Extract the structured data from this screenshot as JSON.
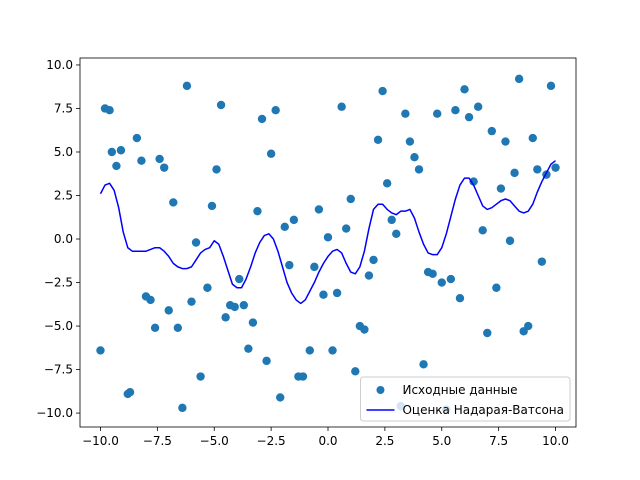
{
  "chart_data": {
    "type": "scatter",
    "title": "",
    "xlabel": "",
    "ylabel": "",
    "xlim": [
      -10.9,
      10.9
    ],
    "ylim": [
      -10.8,
      10.4
    ],
    "xticks": [
      -10.0,
      -7.5,
      -5.0,
      -2.5,
      0.0,
      2.5,
      5.0,
      7.5,
      10.0
    ],
    "yticks": [
      -10.0,
      -7.5,
      -5.0,
      -2.5,
      0.0,
      2.5,
      5.0,
      7.5,
      10.0
    ],
    "xtick_labels": [
      "−10.0",
      "−7.5",
      "−5.0",
      "−2.5",
      "0.0",
      "2.5",
      "5.0",
      "7.5",
      "10.0"
    ],
    "ytick_labels": [
      "−10.0",
      "−7.5",
      "−5.0",
      "−2.5",
      "0.0",
      "2.5",
      "5.0",
      "7.5",
      "10.0"
    ],
    "grid": false,
    "legend_position": "lower-right",
    "colors": {
      "points": "#1f77b4",
      "line": "#0000ff",
      "axes": "#000000",
      "background": "#ffffff"
    },
    "series": [
      {
        "name": "Исходные данные",
        "kind": "scatter",
        "x": [
          -10.0,
          -9.8,
          -9.6,
          -9.5,
          -9.3,
          -9.1,
          -8.8,
          -8.7,
          -8.4,
          -8.2,
          -8.0,
          -7.8,
          -7.6,
          -7.4,
          -7.2,
          -7.0,
          -6.8,
          -6.6,
          -6.4,
          -6.2,
          -6.0,
          -5.8,
          -5.6,
          -5.3,
          -5.1,
          -4.9,
          -4.7,
          -4.5,
          -4.3,
          -4.1,
          -3.9,
          -3.7,
          -3.5,
          -3.3,
          -3.1,
          -2.9,
          -2.7,
          -2.5,
          -2.3,
          -2.1,
          -1.9,
          -1.7,
          -1.5,
          -1.3,
          -1.1,
          -0.8,
          -0.6,
          -0.4,
          -0.2,
          0.0,
          0.2,
          0.4,
          0.6,
          0.8,
          1.0,
          1.2,
          1.4,
          1.6,
          1.8,
          2.0,
          2.2,
          2.4,
          2.6,
          2.8,
          3.0,
          3.2,
          3.4,
          3.6,
          3.8,
          4.0,
          4.2,
          4.4,
          4.6,
          4.8,
          5.0,
          5.2,
          5.4,
          5.6,
          5.8,
          6.0,
          6.2,
          6.4,
          6.6,
          6.8,
          7.0,
          7.2,
          7.4,
          7.6,
          7.8,
          8.0,
          8.2,
          8.4,
          8.6,
          8.8,
          9.0,
          9.2,
          9.4,
          9.6,
          9.8,
          10.0
        ],
        "y": [
          -6.4,
          7.5,
          7.4,
          5.0,
          4.2,
          5.1,
          -8.9,
          -8.8,
          5.8,
          4.5,
          -3.3,
          -3.5,
          -5.1,
          4.6,
          4.1,
          -4.1,
          2.1,
          -5.1,
          -9.7,
          8.8,
          -3.6,
          -0.2,
          -7.9,
          -2.8,
          1.9,
          4.0,
          7.7,
          -4.5,
          -3.8,
          -3.9,
          -2.3,
          -3.8,
          -6.3,
          -4.8,
          1.6,
          6.9,
          -7.0,
          4.9,
          7.4,
          -9.1,
          0.7,
          -1.5,
          1.1,
          -7.9,
          -7.9,
          -6.4,
          -1.6,
          1.7,
          -3.2,
          0.1,
          -6.4,
          -3.1,
          7.6,
          0.6,
          2.3,
          -7.6,
          -5.0,
          -5.2,
          -2.1,
          -1.2,
          5.7,
          8.5,
          3.2,
          1.1,
          0.3,
          -9.6,
          7.2,
          5.6,
          4.7,
          4.0,
          -7.2,
          -1.9,
          -2.0,
          7.2,
          -2.5,
          -9.8,
          -2.3,
          7.4,
          -3.4,
          8.6,
          7.0,
          3.3,
          7.6,
          0.5,
          -5.4,
          6.2,
          -2.8,
          2.9,
          5.6,
          -0.1,
          3.8,
          9.2,
          -5.3,
          -5.0,
          5.8,
          4.0,
          -1.3,
          3.7,
          8.8,
          4.1
        ]
      },
      {
        "name": "Оценка Надарая-Ватсона",
        "kind": "line",
        "x": [
          -10.0,
          -9.8,
          -9.6,
          -9.4,
          -9.2,
          -9.0,
          -8.8,
          -8.6,
          -8.4,
          -8.2,
          -8.0,
          -7.8,
          -7.6,
          -7.4,
          -7.2,
          -7.0,
          -6.8,
          -6.6,
          -6.4,
          -6.2,
          -6.0,
          -5.8,
          -5.6,
          -5.4,
          -5.2,
          -5.0,
          -4.8,
          -4.6,
          -4.4,
          -4.2,
          -4.0,
          -3.8,
          -3.6,
          -3.4,
          -3.2,
          -3.0,
          -2.8,
          -2.6,
          -2.4,
          -2.2,
          -2.0,
          -1.8,
          -1.6,
          -1.4,
          -1.2,
          -1.0,
          -0.8,
          -0.6,
          -0.4,
          -0.2,
          0.0,
          0.2,
          0.4,
          0.6,
          0.8,
          1.0,
          1.2,
          1.4,
          1.6,
          1.8,
          2.0,
          2.2,
          2.4,
          2.6,
          2.8,
          3.0,
          3.2,
          3.4,
          3.6,
          3.8,
          4.0,
          4.2,
          4.4,
          4.6,
          4.8,
          5.0,
          5.2,
          5.4,
          5.6,
          5.8,
          6.0,
          6.2,
          6.4,
          6.6,
          6.8,
          7.0,
          7.2,
          7.4,
          7.6,
          7.8,
          8.0,
          8.2,
          8.4,
          8.6,
          8.8,
          9.0,
          9.2,
          9.4,
          9.6,
          9.8,
          10.0
        ],
        "y": [
          2.6,
          3.1,
          3.2,
          2.8,
          1.8,
          0.4,
          -0.5,
          -0.7,
          -0.7,
          -0.7,
          -0.7,
          -0.6,
          -0.5,
          -0.5,
          -0.7,
          -1.0,
          -1.4,
          -1.6,
          -1.7,
          -1.7,
          -1.6,
          -1.2,
          -0.8,
          -0.6,
          -0.5,
          -0.1,
          -0.3,
          -1.0,
          -1.8,
          -2.6,
          -2.8,
          -2.8,
          -2.3,
          -1.6,
          -0.8,
          -0.2,
          0.2,
          0.3,
          0.0,
          -0.7,
          -1.6,
          -2.5,
          -3.1,
          -3.5,
          -3.7,
          -3.5,
          -3.0,
          -2.5,
          -1.9,
          -1.4,
          -1.0,
          -0.7,
          -0.6,
          -0.8,
          -1.4,
          -1.9,
          -2.0,
          -1.6,
          -0.7,
          0.6,
          1.7,
          2.0,
          2.0,
          1.7,
          1.5,
          1.4,
          1.6,
          1.6,
          1.7,
          1.2,
          0.4,
          -0.3,
          -0.8,
          -0.9,
          -0.9,
          -0.5,
          0.3,
          1.3,
          2.3,
          3.1,
          3.5,
          3.5,
          3.1,
          2.5,
          1.9,
          1.7,
          1.8,
          2.0,
          2.2,
          2.3,
          2.2,
          1.9,
          1.6,
          1.5,
          1.6,
          2.0,
          2.7,
          3.3,
          3.8,
          4.3,
          4.5
        ]
      }
    ]
  }
}
